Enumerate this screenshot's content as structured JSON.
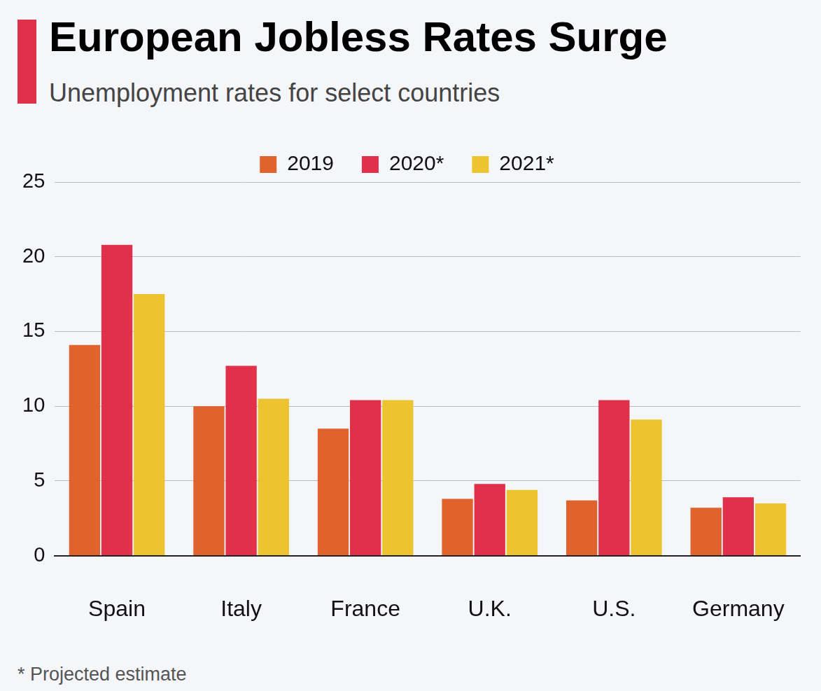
{
  "chart_data": {
    "type": "bar",
    "title": "European Jobless Rates Surge",
    "subtitle": "Unemployment rates for select countries",
    "annotations": [
      "* Projected estimate"
    ],
    "categories": [
      "Spain",
      "Italy",
      "France",
      "U.K.",
      "U.S.",
      "Germany"
    ],
    "series": [
      {
        "name": "2019",
        "color": "#e0622c",
        "values": [
          14.1,
          10.0,
          8.5,
          3.8,
          3.7,
          3.2
        ]
      },
      {
        "name": "2020*",
        "color": "#e0304a",
        "values": [
          20.8,
          12.7,
          10.4,
          4.8,
          10.4,
          3.9
        ]
      },
      {
        "name": "2021*",
        "color": "#ecc430",
        "values": [
          17.5,
          10.5,
          10.4,
          4.4,
          9.1,
          3.5
        ]
      }
    ],
    "ylim": [
      0,
      25
    ],
    "yticks": [
      0,
      5,
      10,
      15,
      20,
      25
    ],
    "grid": true,
    "legend": "top"
  }
}
